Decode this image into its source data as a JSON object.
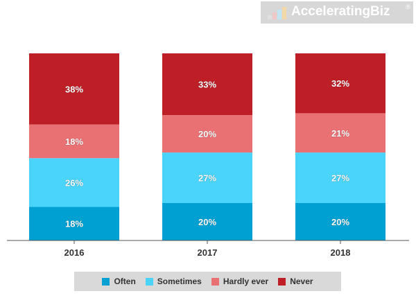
{
  "logo": {
    "text": "AcceleratingBiz",
    "reg": "®",
    "palette": [
      "#e0e0e0",
      "#f0c8c8",
      "#bfe6f2",
      "#f4d9a8"
    ]
  },
  "chart_data": {
    "type": "bar",
    "stacked": true,
    "categories": [
      "2016",
      "2017",
      "2018"
    ],
    "series": [
      {
        "name": "Often",
        "color": "#00a0d2",
        "values": [
          18,
          20,
          20
        ]
      },
      {
        "name": "Sometimes",
        "color": "#4ad3fb",
        "values": [
          26,
          27,
          27
        ]
      },
      {
        "name": "Hardly ever",
        "color": "#e97073",
        "values": [
          18,
          20,
          21
        ]
      },
      {
        "name": "Never",
        "color": "#be1e26",
        "values": [
          38,
          33,
          32
        ]
      }
    ],
    "ylim": [
      0,
      100
    ],
    "grid": false,
    "legend_position": "bottom",
    "label_suffix": "%",
    "title": "",
    "xlabel": "",
    "ylabel": ""
  }
}
